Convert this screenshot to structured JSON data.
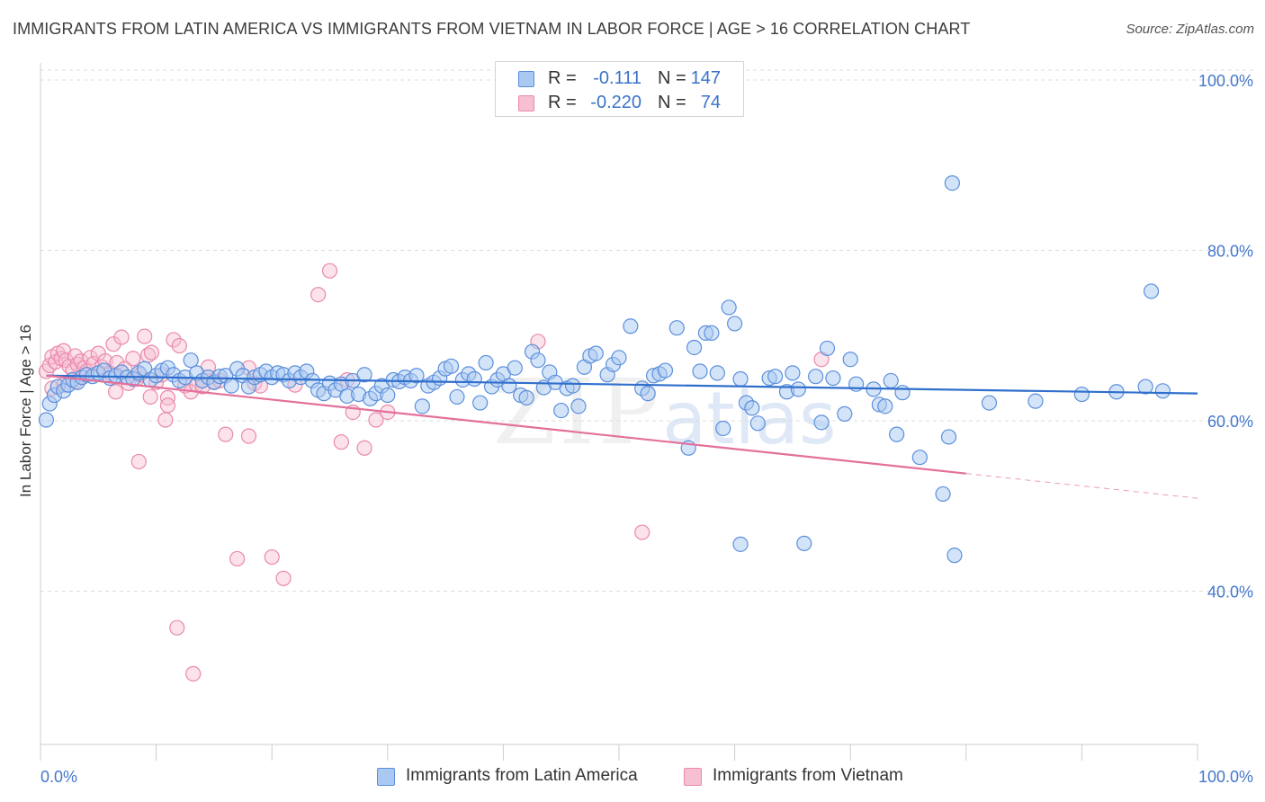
{
  "header": {
    "title": "IMMIGRANTS FROM LATIN AMERICA VS IMMIGRANTS FROM VIETNAM IN LABOR FORCE | AGE > 16 CORRELATION CHART",
    "source": "Source: ZipAtlas.com"
  },
  "legend": {
    "rows": [
      {
        "r_label": "R =",
        "r_value": "-0.111",
        "n_label": "N =",
        "n_value": "147",
        "color": "#9dc1f0"
      },
      {
        "r_label": "R =",
        "r_value": "-0.220",
        "n_label": "N =",
        "n_value": "74",
        "color": "#f4b2c8"
      }
    ]
  },
  "bottom_legend": {
    "series_a": "Immigrants from Latin America",
    "series_b": "Immigrants from Vietnam"
  },
  "watermark": {
    "zip": "ZIP",
    "atlas": "atlas"
  },
  "colors": {
    "blue_fill": "#a9c9f2",
    "blue_stroke": "#5b8fdc",
    "blue_line": "#2f6fcc",
    "pink_fill": "#f7bfd2",
    "pink_stroke": "#e98aac",
    "pink_line": "#e3709b",
    "axis_text": "#4477cc",
    "grid": "#dddddd"
  },
  "chart_data": {
    "type": "scatter",
    "title": "IMMIGRANTS FROM LATIN AMERICA VS IMMIGRANTS FROM VIETNAM IN LABOR FORCE | AGE > 16 CORRELATION CHART",
    "xlabel": "",
    "ylabel": "In Labor Force | Age > 16",
    "xlim": [
      0,
      100
    ],
    "ylim": [
      22,
      102
    ],
    "x_tick_labels": [
      "0.0%",
      "100.0%"
    ],
    "y_ticks": [
      40,
      60,
      80,
      100
    ],
    "y_tick_labels": [
      "40.0%",
      "60.0%",
      "80.0%",
      "100.0%"
    ],
    "grid": true,
    "legend_position": "top-center",
    "series": [
      {
        "name": "Immigrants from Latin America",
        "R": -0.111,
        "N": 147,
        "trend": {
          "x": [
            0.5,
            100
          ],
          "y": [
            65.3,
            63.2
          ]
        },
        "points": [
          [
            0.5,
            60.1
          ],
          [
            0.8,
            62.0
          ],
          [
            1.2,
            63.0
          ],
          [
            1.5,
            64.0
          ],
          [
            2.0,
            63.5
          ],
          [
            2.4,
            64.2
          ],
          [
            2.8,
            64.8
          ],
          [
            3.2,
            64.5
          ],
          [
            3.6,
            65.1
          ],
          [
            4.0,
            65.4
          ],
          [
            4.5,
            65.2
          ],
          [
            5.0,
            65.6
          ],
          [
            5.5,
            65.9
          ],
          [
            6.0,
            65.0
          ],
          [
            6.5,
            65.3
          ],
          [
            7.0,
            65.7
          ],
          [
            7.5,
            65.1
          ],
          [
            8.0,
            64.9
          ],
          [
            8.5,
            65.6
          ],
          [
            9.0,
            66.1
          ],
          [
            9.5,
            64.8
          ],
          [
            10.0,
            65.3
          ],
          [
            10.5,
            65.9
          ],
          [
            11.0,
            66.2
          ],
          [
            11.5,
            65.4
          ],
          [
            12.0,
            64.7
          ],
          [
            12.5,
            65.1
          ],
          [
            13.0,
            67.1
          ],
          [
            13.5,
            65.6
          ],
          [
            14.0,
            64.7
          ],
          [
            14.5,
            65.1
          ],
          [
            15.0,
            64.5
          ],
          [
            15.5,
            65.2
          ],
          [
            16.0,
            65.3
          ],
          [
            16.5,
            64.1
          ],
          [
            17.0,
            66.1
          ],
          [
            17.5,
            65.3
          ],
          [
            18.0,
            64.0
          ],
          [
            18.5,
            65.1
          ],
          [
            19.0,
            65.4
          ],
          [
            19.5,
            65.8
          ],
          [
            20.0,
            65.1
          ],
          [
            20.5,
            65.6
          ],
          [
            21.0,
            65.4
          ],
          [
            21.5,
            64.7
          ],
          [
            22.0,
            65.6
          ],
          [
            22.5,
            65.1
          ],
          [
            23.0,
            65.8
          ],
          [
            23.5,
            64.7
          ],
          [
            24.0,
            63.6
          ],
          [
            24.5,
            63.2
          ],
          [
            25.0,
            64.4
          ],
          [
            25.5,
            63.6
          ],
          [
            26.0,
            64.3
          ],
          [
            26.5,
            62.9
          ],
          [
            27.0,
            64.7
          ],
          [
            27.5,
            63.1
          ],
          [
            28.0,
            65.4
          ],
          [
            28.5,
            62.6
          ],
          [
            29.0,
            63.2
          ],
          [
            29.5,
            64.1
          ],
          [
            30.0,
            63.0
          ],
          [
            30.5,
            64.8
          ],
          [
            31.0,
            64.6
          ],
          [
            31.5,
            65.1
          ],
          [
            32.0,
            64.7
          ],
          [
            32.5,
            65.3
          ],
          [
            33.0,
            61.7
          ],
          [
            33.5,
            64.1
          ],
          [
            34.0,
            64.5
          ],
          [
            34.5,
            65.0
          ],
          [
            35.0,
            66.1
          ],
          [
            35.5,
            66.4
          ],
          [
            36.0,
            62.8
          ],
          [
            36.5,
            64.8
          ],
          [
            37.0,
            65.5
          ],
          [
            37.5,
            64.9
          ],
          [
            38.0,
            62.1
          ],
          [
            38.5,
            66.8
          ],
          [
            39.0,
            64.0
          ],
          [
            39.5,
            64.8
          ],
          [
            40.0,
            65.5
          ],
          [
            40.5,
            64.1
          ],
          [
            41.0,
            66.2
          ],
          [
            41.5,
            63.0
          ],
          [
            42.0,
            62.7
          ],
          [
            42.5,
            68.1
          ],
          [
            43.0,
            67.1
          ],
          [
            43.5,
            63.9
          ],
          [
            44.0,
            65.7
          ],
          [
            44.5,
            64.5
          ],
          [
            45.0,
            61.2
          ],
          [
            45.5,
            63.8
          ],
          [
            46.0,
            64.1
          ],
          [
            46.5,
            61.7
          ],
          [
            47.0,
            66.3
          ],
          [
            47.5,
            67.6
          ],
          [
            48.0,
            67.9
          ],
          [
            49.0,
            65.4
          ],
          [
            49.5,
            66.6
          ],
          [
            50.0,
            67.4
          ],
          [
            51.0,
            71.1
          ],
          [
            52.0,
            63.8
          ],
          [
            52.5,
            63.2
          ],
          [
            53.0,
            65.3
          ],
          [
            53.5,
            65.5
          ],
          [
            54.0,
            65.9
          ],
          [
            55.0,
            70.9
          ],
          [
            56.0,
            56.8
          ],
          [
            56.5,
            68.6
          ],
          [
            57.0,
            65.8
          ],
          [
            57.5,
            70.3
          ],
          [
            58.0,
            70.3
          ],
          [
            58.5,
            65.6
          ],
          [
            59.0,
            59.1
          ],
          [
            59.5,
            73.3
          ],
          [
            60.0,
            71.4
          ],
          [
            60.5,
            64.9
          ],
          [
            61.0,
            62.1
          ],
          [
            61.5,
            61.5
          ],
          [
            62.0,
            59.7
          ],
          [
            63.0,
            65.0
          ],
          [
            63.5,
            65.2
          ],
          [
            64.5,
            63.4
          ],
          [
            65.0,
            65.6
          ],
          [
            65.5,
            63.7
          ],
          [
            66.0,
            45.6
          ],
          [
            67.0,
            65.2
          ],
          [
            67.5,
            59.8
          ],
          [
            68.0,
            68.5
          ],
          [
            68.5,
            65.0
          ],
          [
            69.5,
            60.8
          ],
          [
            70.0,
            67.2
          ],
          [
            70.5,
            64.3
          ],
          [
            72.0,
            63.7
          ],
          [
            72.5,
            61.9
          ],
          [
            73.0,
            61.7
          ],
          [
            73.5,
            64.7
          ],
          [
            74.0,
            58.4
          ],
          [
            76.0,
            55.7
          ],
          [
            78.0,
            51.4
          ],
          [
            78.5,
            58.1
          ],
          [
            79.0,
            44.2
          ],
          [
            60.5,
            45.5
          ],
          [
            78.8,
            87.9
          ],
          [
            96.0,
            75.2
          ],
          [
            97.0,
            63.5
          ],
          [
            95.5,
            64.0
          ],
          [
            93.0,
            63.4
          ],
          [
            90.0,
            63.1
          ],
          [
            86.0,
            62.3
          ],
          [
            82.0,
            62.1
          ],
          [
            74.5,
            63.3
          ]
        ]
      },
      {
        "name": "Immigrants from Vietnam",
        "R": -0.22,
        "N": 74,
        "trend": {
          "x": [
            0.5,
            80
          ],
          "y": [
            65.3,
            53.8
          ]
        },
        "trend_dashed": {
          "x": [
            80,
            100
          ],
          "y": [
            53.8,
            50.9
          ]
        },
        "points": [
          [
            0.5,
            65.8
          ],
          [
            0.8,
            66.5
          ],
          [
            1.0,
            67.5
          ],
          [
            1.3,
            66.9
          ],
          [
            1.5,
            67.9
          ],
          [
            1.8,
            67.3
          ],
          [
            2.0,
            68.2
          ],
          [
            2.2,
            67.1
          ],
          [
            2.5,
            66.4
          ],
          [
            2.8,
            65.9
          ],
          [
            3.0,
            67.6
          ],
          [
            3.2,
            66.6
          ],
          [
            3.5,
            67.0
          ],
          [
            3.8,
            66.2
          ],
          [
            4.0,
            65.8
          ],
          [
            4.3,
            67.4
          ],
          [
            4.6,
            66.7
          ],
          [
            5.0,
            67.9
          ],
          [
            5.3,
            66.3
          ],
          [
            5.6,
            67.0
          ],
          [
            6.0,
            65.6
          ],
          [
            6.3,
            69.0
          ],
          [
            6.6,
            66.8
          ],
          [
            7.0,
            69.8
          ],
          [
            7.3,
            66.1
          ],
          [
            7.6,
            64.4
          ],
          [
            8.0,
            67.3
          ],
          [
            8.3,
            64.9
          ],
          [
            8.6,
            65.4
          ],
          [
            9.0,
            69.9
          ],
          [
            9.3,
            67.7
          ],
          [
            9.6,
            68.0
          ],
          [
            10.0,
            64.5
          ],
          [
            10.5,
            65.4
          ],
          [
            11.0,
            62.7
          ],
          [
            11.5,
            69.5
          ],
          [
            12.0,
            68.8
          ],
          [
            12.5,
            64.1
          ],
          [
            13.0,
            63.4
          ],
          [
            13.5,
            64.2
          ],
          [
            14.0,
            64.0
          ],
          [
            14.5,
            66.3
          ],
          [
            15.0,
            64.6
          ],
          [
            15.5,
            64.7
          ],
          [
            16.0,
            58.4
          ],
          [
            17.0,
            43.8
          ],
          [
            18.0,
            58.2
          ],
          [
            18.5,
            64.4
          ],
          [
            19.0,
            64.1
          ],
          [
            20.0,
            44.0
          ],
          [
            21.0,
            41.5
          ],
          [
            22.0,
            64.2
          ],
          [
            24.0,
            74.8
          ],
          [
            25.0,
            77.6
          ],
          [
            26.0,
            57.5
          ],
          [
            26.5,
            64.8
          ],
          [
            27.0,
            61.0
          ],
          [
            28.0,
            56.8
          ],
          [
            29.0,
            60.1
          ],
          [
            30.0,
            61.0
          ],
          [
            8.5,
            55.2
          ],
          [
            10.8,
            60.1
          ],
          [
            11.0,
            61.8
          ],
          [
            11.8,
            35.7
          ],
          [
            13.2,
            30.3
          ],
          [
            9.5,
            62.8
          ],
          [
            6.5,
            63.4
          ],
          [
            3.0,
            64.6
          ],
          [
            2.0,
            64.2
          ],
          [
            1.0,
            63.8
          ],
          [
            43.0,
            69.3
          ],
          [
            52.0,
            46.9
          ],
          [
            67.5,
            67.2
          ],
          [
            18.0,
            66.2
          ]
        ]
      }
    ]
  }
}
